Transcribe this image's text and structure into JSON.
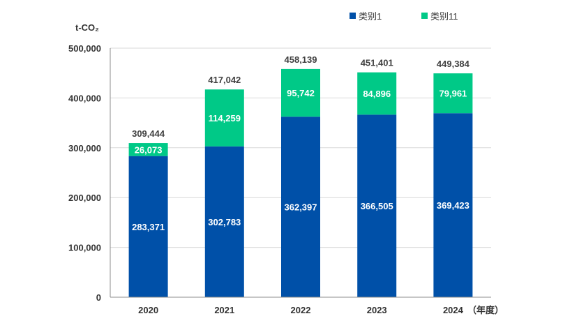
{
  "chart_data": {
    "type": "bar",
    "stacked": true,
    "title": "",
    "ylabel": "t-CO₂",
    "xlabel": "（年度）",
    "ylim": [
      0,
      500000
    ],
    "yticks": [
      0,
      100000,
      200000,
      300000,
      400000,
      500000
    ],
    "ytick_labels": [
      "0",
      "100,000",
      "200,000",
      "300,000",
      "400,000",
      "500,000"
    ],
    "categories": [
      "2020",
      "2021",
      "2022",
      "2023",
      "2024"
    ],
    "series": [
      {
        "name": "类别1",
        "color": "#0050a8",
        "values": [
          283371,
          302783,
          362397,
          366505,
          369423
        ],
        "labels": [
          "283,371",
          "302,783",
          "362,397",
          "366,505",
          "369,423"
        ]
      },
      {
        "name": "类别11",
        "color": "#00c987",
        "values": [
          26073,
          114259,
          95742,
          84896,
          79961
        ],
        "labels": [
          "26,073",
          "114,259",
          "95,742",
          "84,896",
          "79,961"
        ]
      }
    ],
    "totals": [
      "309,444",
      "417,042",
      "458,139",
      "451,401",
      "449,384"
    ],
    "legend_position": "top-right",
    "grid": true
  }
}
